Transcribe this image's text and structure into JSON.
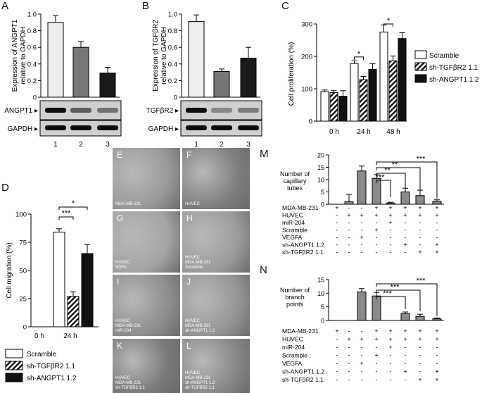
{
  "panels": {
    "A": "A",
    "B": "B",
    "C": "C",
    "D": "D",
    "M": "M",
    "N": "N"
  },
  "chart_data": [
    {
      "id": "A",
      "type": "bar",
      "ylabel": "Expression of ANGPT1\nrelative to GAPDH",
      "ylim": [
        0,
        1.0
      ],
      "yticks": [
        "0",
        "0.2",
        "0.4",
        "0.6",
        "0.8",
        "1.0"
      ],
      "categories": [
        "1",
        "2",
        "3"
      ],
      "values": [
        0.9,
        0.6,
        0.29
      ],
      "errors": [
        0.08,
        0.07,
        0.07
      ],
      "colors": [
        "#eeeeee",
        "#777777",
        "#1a1a1a"
      ],
      "blot": [
        "ANGPT1",
        "GAPDH"
      ]
    },
    {
      "id": "B",
      "type": "bar",
      "ylabel": "Expression of TGFβR2\nrelative to GAPDH",
      "ylim": [
        0,
        1.0
      ],
      "yticks": [
        "0",
        "0.2",
        "0.4",
        "0.6",
        "0.8",
        "1.0"
      ],
      "categories": [
        "1",
        "2",
        "3"
      ],
      "values": [
        0.91,
        0.31,
        0.47
      ],
      "errors": [
        0.08,
        0.03,
        0.13
      ],
      "colors": [
        "#eeeeee",
        "#777777",
        "#1a1a1a"
      ],
      "blot": [
        "TGFβR2",
        "GAPDH"
      ]
    },
    {
      "id": "C",
      "type": "bar",
      "ylabel": "Cell proliferation (%)",
      "ylim": [
        0,
        300
      ],
      "yticks": [
        "0",
        "100",
        "200",
        "300"
      ],
      "categories": [
        "0 h",
        "24 h",
        "48 h"
      ],
      "series": [
        {
          "name": "Scramble",
          "values": [
            91,
            178,
            275
          ],
          "errors": [
            5,
            8,
            22
          ]
        },
        {
          "name": "sh-TGFβR2 1.1",
          "values": [
            88,
            128,
            186
          ],
          "errors": [
            6,
            10,
            15
          ]
        },
        {
          "name": "sh-ANGPT1 1.2",
          "values": [
            77,
            160,
            255
          ],
          "errors": [
            17,
            17,
            18
          ]
        }
      ],
      "sig": [
        "*",
        "*"
      ],
      "legend": "right"
    },
    {
      "id": "D",
      "type": "bar",
      "ylabel": "Cell migration (%)",
      "ylim": [
        0,
        100
      ],
      "yticks": [
        "0",
        "25",
        "50",
        "75",
        "100"
      ],
      "categories": [
        "0 h",
        "24 h"
      ],
      "series": [
        {
          "name": "Scramble",
          "values": [
            0,
            84
          ],
          "errors": [
            0,
            3
          ]
        },
        {
          "name": "sh-TGFβR2 1.1",
          "values": [
            0,
            27
          ],
          "errors": [
            0,
            4
          ]
        },
        {
          "name": "sh-ANGPT1 1.2",
          "values": [
            0,
            65
          ],
          "errors": [
            0,
            8
          ]
        }
      ],
      "sig": [
        "*",
        "***"
      ],
      "legend": "bottom"
    },
    {
      "id": "M",
      "type": "bar",
      "ylabel": "Number of\ncapillary\ntubes",
      "ylim": [
        0,
        20
      ],
      "yticks": [
        "0",
        "5",
        "10",
        "15",
        "20"
      ],
      "values": [
        0,
        1,
        13.5,
        10.5,
        0.5,
        5,
        3.5,
        1.2
      ],
      "errors": [
        0,
        3,
        2,
        1.5,
        0.3,
        1.5,
        2.2,
        0.6
      ],
      "sig": [
        "***",
        "**",
        "**",
        "***"
      ]
    },
    {
      "id": "N",
      "type": "bar",
      "ylabel": "Number of\nbranch\npoints",
      "ylim": [
        0,
        15
      ],
      "yticks": [
        "0",
        "5",
        "10",
        "15"
      ],
      "values": [
        0,
        0,
        10.5,
        9,
        0,
        2.5,
        1.5,
        0.6
      ],
      "errors": [
        0,
        0,
        1.2,
        1.3,
        0,
        0.6,
        0.8,
        0.3
      ],
      "sig": [
        "***",
        "***",
        "***"
      ]
    }
  ],
  "treatment_table": {
    "rows": [
      "MDA-MB-231",
      "HUVEC",
      "miR-204",
      "Scramble",
      "VEGFA",
      "sh-ANGPT1 1.2",
      "sh-TGFβR2 1.1"
    ],
    "cells": [
      [
        "+",
        "-",
        "-",
        "+",
        "+",
        "+",
        "+",
        "+"
      ],
      [
        "-",
        "+",
        "+",
        "+",
        "+",
        "+",
        "+",
        "+"
      ],
      [
        "-",
        "-",
        "-",
        "-",
        "+",
        "-",
        "-",
        "-"
      ],
      [
        "-",
        "-",
        "-",
        "+",
        "-",
        "-",
        "-",
        "-"
      ],
      [
        "-",
        "-",
        "+",
        "-",
        "-",
        "-",
        "-",
        "-"
      ],
      [
        "-",
        "-",
        "-",
        "-",
        "-",
        "+",
        "-",
        "+"
      ],
      [
        "-",
        "-",
        "-",
        "-",
        "-",
        "-",
        "+",
        "+"
      ]
    ]
  },
  "micrographs": [
    {
      "letter": "E",
      "caption": "MDA-MB-231"
    },
    {
      "letter": "F",
      "caption": "HUVEC"
    },
    {
      "letter": "G",
      "caption": "HUVEC\nVGFA"
    },
    {
      "letter": "H",
      "caption": "HUVEC\nMDA-MB-231\nScramble"
    },
    {
      "letter": "I",
      "caption": "HUVEC\nMDA-MB-231\nmiR-204"
    },
    {
      "letter": "J",
      "caption": "HUVEC\nMDA-MB-231\nsh-ANGPT1 1.2"
    },
    {
      "letter": "K",
      "caption": "HUVEC\nMDA-MB-231\nsh-TGFBR2 1.1"
    },
    {
      "letter": "L",
      "caption": "HUVEC\nMDA-MB-231\nsh-ANGPT1 1.2\nsh-TGFBR2 1.1"
    }
  ]
}
